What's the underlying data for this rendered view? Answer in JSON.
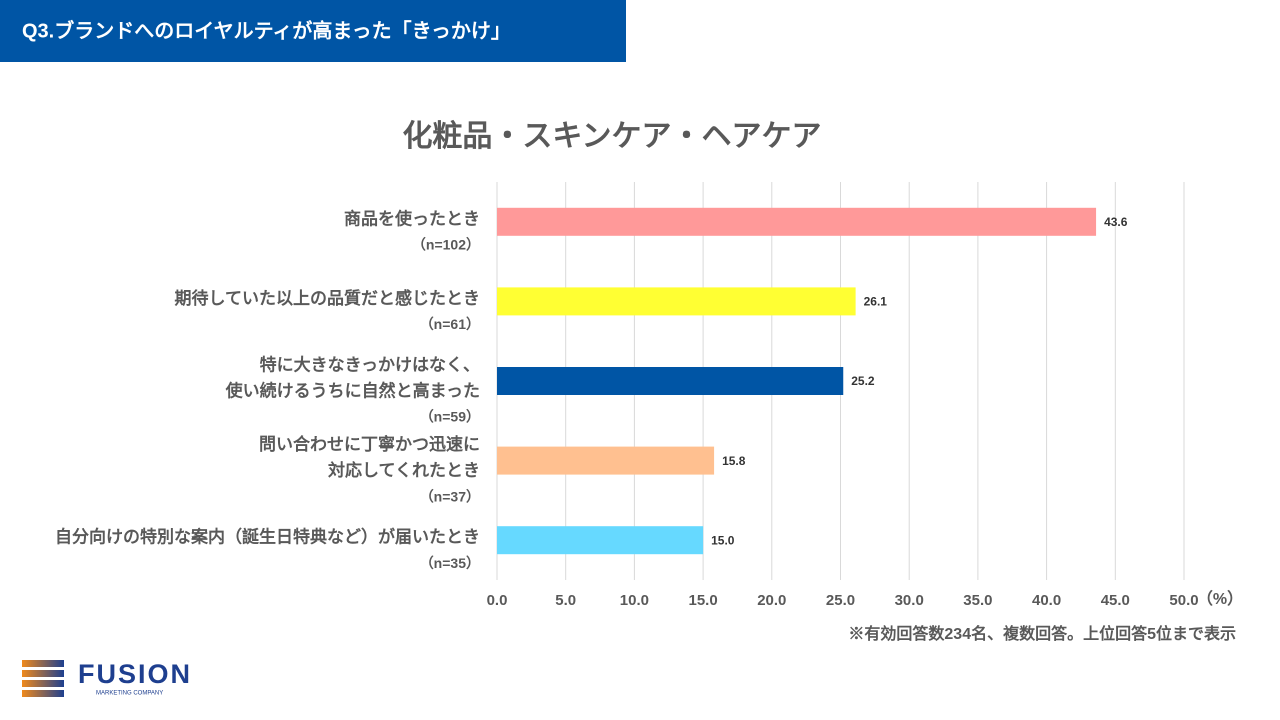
{
  "header": {
    "title": "Q3.ブランドへのロイヤルティが高まった「きっかけ」"
  },
  "chart_data": {
    "type": "bar",
    "orientation": "horizontal",
    "title": "化粧品・スキンケア・ヘアケア",
    "categories": [
      [
        "商品を使ったとき",
        "（n=102）"
      ],
      [
        "期待していた以上の品質だと感じたとき",
        "（n=61）"
      ],
      [
        "特に大きなきっかけはなく、",
        "使い続けるうちに自然と高まった",
        "（n=59）"
      ],
      [
        "問い合わせに丁寧かつ迅速に",
        "対応してくれたとき",
        "（n=37）"
      ],
      [
        "自分向けの特別な案内（誕生日特典など）が届いたとき",
        "（n=35）"
      ]
    ],
    "values": [
      43.6,
      26.1,
      25.2,
      15.8,
      15.0
    ],
    "value_labels": [
      "43.6",
      "26.1",
      "25.2",
      "15.8",
      "15.0"
    ],
    "colors": [
      "#ff9999",
      "#ffff33",
      "#0055a5",
      "#ffc090",
      "#66d9ff"
    ],
    "xlim": [
      0,
      50
    ],
    "xticks": [
      {
        "value": 0,
        "label": "0.0"
      },
      {
        "value": 5,
        "label": "5.0"
      },
      {
        "value": 10,
        "label": "10.0"
      },
      {
        "value": 15,
        "label": "15.0"
      },
      {
        "value": 20,
        "label": "20.0"
      },
      {
        "value": 25,
        "label": "25.0"
      },
      {
        "value": 30,
        "label": "30.0"
      },
      {
        "value": 35,
        "label": "35.0"
      },
      {
        "value": 40,
        "label": "40.0"
      },
      {
        "value": 45,
        "label": "45.0"
      },
      {
        "value": 50,
        "label": "50.0"
      }
    ],
    "x_unit": "（%）",
    "grid": true
  },
  "footnote": "※有効回答数234名、複数回答。上位回答5位まで表示",
  "logo": {
    "name": "FUSION",
    "tagline": "MARKETING COMPANY"
  }
}
